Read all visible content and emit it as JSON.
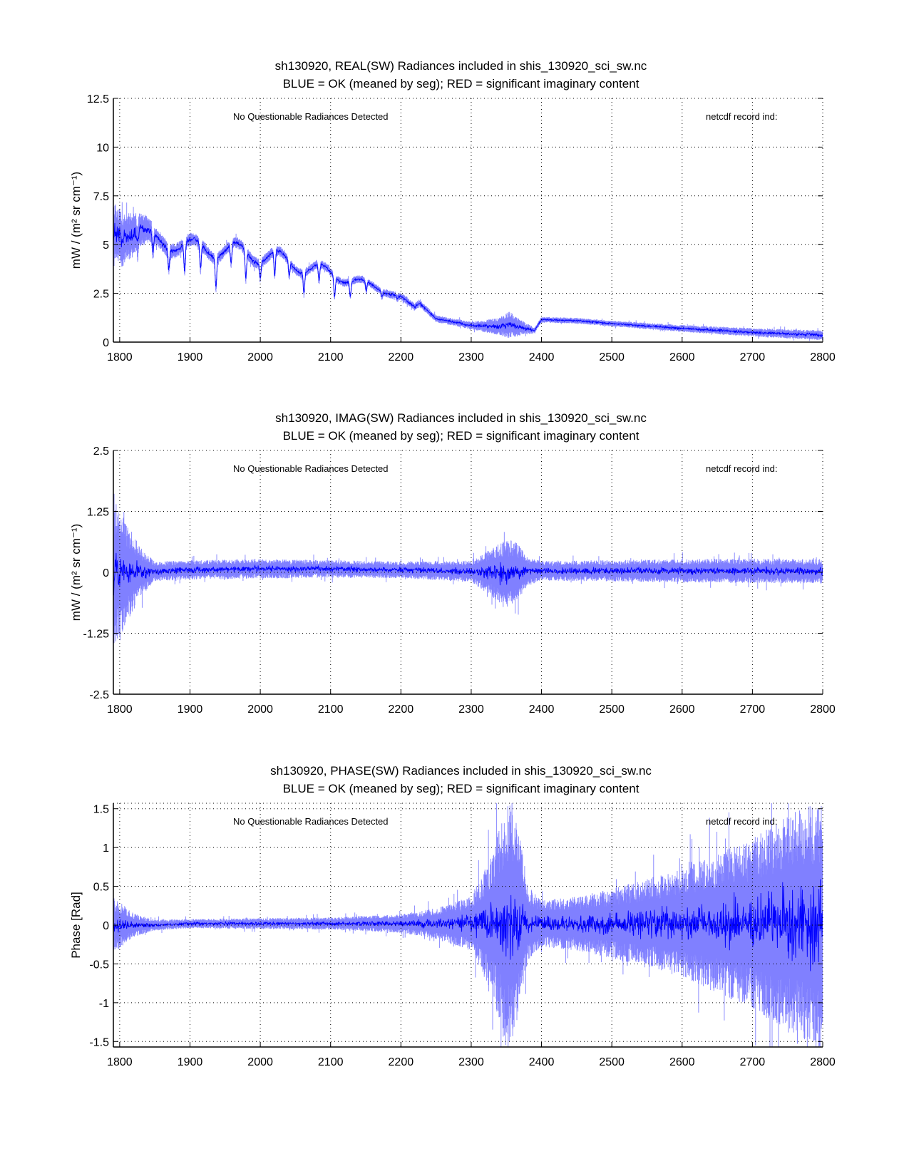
{
  "chart_data": [
    {
      "type": "line",
      "title": [
        "sh130920, REAL(SW) Radiances included in shis_130920_sci_sw.nc",
        "BLUE = OK (meaned by seg); RED = significant imaginary content"
      ],
      "xlabel": "",
      "ylabel": "mW / (m² sr cm⁻¹)",
      "xlim": [
        1791,
        2800
      ],
      "ylim": [
        0,
        12.5
      ],
      "xticks": [
        1800,
        1900,
        2000,
        2100,
        2200,
        2300,
        2400,
        2500,
        2600,
        2700,
        2800
      ],
      "yticks": [
        0,
        2.5,
        5,
        7.5,
        10,
        12.5
      ],
      "ytick_labels": [
        "0",
        "2.5",
        "5",
        "7.5",
        "10",
        "12.5"
      ],
      "grid": true,
      "annotations": [
        "No Questionable Radiances Detected",
        "netcdf record ind:"
      ],
      "series": [
        {
          "name": "all records (light blue)",
          "color": "#8080ff",
          "kind": "envelope",
          "x": [
            1791,
            1800,
            1825,
            1850,
            1900,
            1950,
            2000,
            2050,
            2100,
            2150,
            2200,
            2220,
            2226,
            2250,
            2300,
            2340,
            2355,
            2370,
            2390,
            2400,
            2450,
            2500,
            2600,
            2700,
            2800
          ],
          "mean": [
            5.4,
            5.5,
            5.8,
            5.2,
            4.9,
            4.7,
            4.5,
            4.0,
            3.5,
            3.0,
            2.3,
            1.8,
            2.0,
            1.2,
            0.85,
            0.8,
            0.9,
            0.75,
            0.6,
            1.15,
            1.1,
            0.95,
            0.7,
            0.5,
            0.35
          ],
          "halfwidth": [
            1.6,
            1.5,
            1.0,
            0.45,
            0.35,
            0.3,
            0.3,
            0.25,
            0.22,
            0.2,
            0.2,
            0.2,
            0.2,
            0.18,
            0.2,
            0.45,
            0.7,
            0.4,
            0.15,
            0.15,
            0.15,
            0.15,
            0.18,
            0.22,
            0.25
          ],
          "absorption_depth": [
            0.5,
            0.8,
            1.2,
            1.5,
            1.6,
            1.8,
            1.9,
            1.6,
            1.3,
            0.6,
            0.2,
            0,
            0,
            0,
            0,
            0,
            0,
            0,
            0,
            0,
            0,
            0,
            0,
            0,
            0
          ]
        },
        {
          "name": "mean by segment (blue)",
          "color": "#0000ff",
          "kind": "line"
        }
      ]
    },
    {
      "type": "line",
      "title": [
        "sh130920, IMAG(SW) Radiances included in shis_130920_sci_sw.nc",
        "BLUE = OK (meaned by seg); RED = significant imaginary content"
      ],
      "xlabel": "",
      "ylabel": "mW / (m² sr cm⁻¹)",
      "xlim": [
        1791,
        2800
      ],
      "ylim": [
        -2.5,
        2.5
      ],
      "xticks": [
        1800,
        1900,
        2000,
        2100,
        2200,
        2300,
        2400,
        2500,
        2600,
        2700,
        2800
      ],
      "yticks": [
        -2.5,
        -1.25,
        0,
        1.25,
        2.5
      ],
      "ytick_labels": [
        "-2.5",
        "-1.25",
        "0",
        "1.25",
        "2.5"
      ],
      "grid": true,
      "annotations": [
        "No Questionable Radiances Detected",
        "netcdf record ind:"
      ],
      "series": [
        {
          "name": "all records (light blue)",
          "color": "#8080ff",
          "kind": "envelope",
          "x": [
            1791,
            1800,
            1815,
            1830,
            1850,
            1900,
            2000,
            2100,
            2200,
            2300,
            2330,
            2350,
            2365,
            2380,
            2400,
            2500,
            2600,
            2700,
            2800
          ],
          "mean": [
            0,
            0,
            0,
            0,
            0.02,
            0.05,
            0.07,
            0.07,
            0.05,
            0.02,
            0,
            -0.05,
            0,
            0.02,
            0.03,
            0.03,
            0.03,
            0.03,
            0.02
          ],
          "halfwidth": [
            1.5,
            1.3,
            0.9,
            0.5,
            0.2,
            0.2,
            0.2,
            0.18,
            0.17,
            0.22,
            0.5,
            0.75,
            0.6,
            0.3,
            0.2,
            0.22,
            0.24,
            0.25,
            0.25
          ],
          "absorption_depth": [
            0,
            0,
            0,
            0,
            0,
            0,
            0,
            0,
            0,
            0,
            0,
            0,
            0,
            0,
            0,
            0,
            0,
            0,
            0
          ]
        },
        {
          "name": "mean by segment (blue)",
          "color": "#0000ff",
          "kind": "line"
        }
      ]
    },
    {
      "type": "line",
      "title": [
        "sh130920, PHASE(SW) Radiances included in shis_130920_sci_sw.nc",
        "BLUE = OK (meaned by seg); RED = significant imaginary content"
      ],
      "xlabel": "",
      "ylabel": "Phase [Rad]",
      "xlim": [
        1791,
        2800
      ],
      "ylim": [
        -1.5708,
        1.5708
      ],
      "xticks": [
        1800,
        1900,
        2000,
        2100,
        2200,
        2300,
        2400,
        2500,
        2600,
        2700,
        2800
      ],
      "yticks": [
        -1.5,
        -1,
        -0.5,
        0,
        0.5,
        1,
        1.5
      ],
      "ytick_labels": [
        "-1.5",
        "-1",
        "-0.5",
        "0",
        "0.5",
        "1",
        "1.5"
      ],
      "grid": true,
      "annotations": [
        "No Questionable Radiances Detected",
        "netcdf record ind:"
      ],
      "series": [
        {
          "name": "all records (light blue)",
          "color": "#8080ff",
          "kind": "envelope",
          "x": [
            1791,
            1800,
            1820,
            1850,
            1900,
            2000,
            2100,
            2200,
            2250,
            2300,
            2330,
            2350,
            2365,
            2380,
            2400,
            2450,
            2500,
            2600,
            2650,
            2700,
            2750,
            2800
          ],
          "mean": [
            0,
            0,
            0,
            0,
            0.02,
            0.02,
            0.02,
            0.02,
            0.02,
            0.02,
            0.02,
            0,
            0.05,
            0.02,
            0.02,
            0.02,
            0.02,
            0.03,
            0.02,
            0.02,
            0.02,
            0
          ],
          "halfwidth": [
            0.35,
            0.3,
            0.15,
            0.07,
            0.06,
            0.07,
            0.08,
            0.12,
            0.2,
            0.35,
            0.9,
            1.6,
            1.4,
            0.5,
            0.3,
            0.35,
            0.45,
            0.7,
            0.9,
            1.1,
            1.4,
            1.6
          ],
          "absorption_depth": [
            0,
            0,
            0,
            0,
            0,
            0,
            0,
            0,
            0,
            0,
            0,
            0,
            0,
            0,
            0,
            0,
            0,
            0,
            0,
            0,
            0,
            0
          ]
        },
        {
          "name": "mean by segment (blue)",
          "color": "#0000ff",
          "kind": "line"
        }
      ]
    }
  ]
}
